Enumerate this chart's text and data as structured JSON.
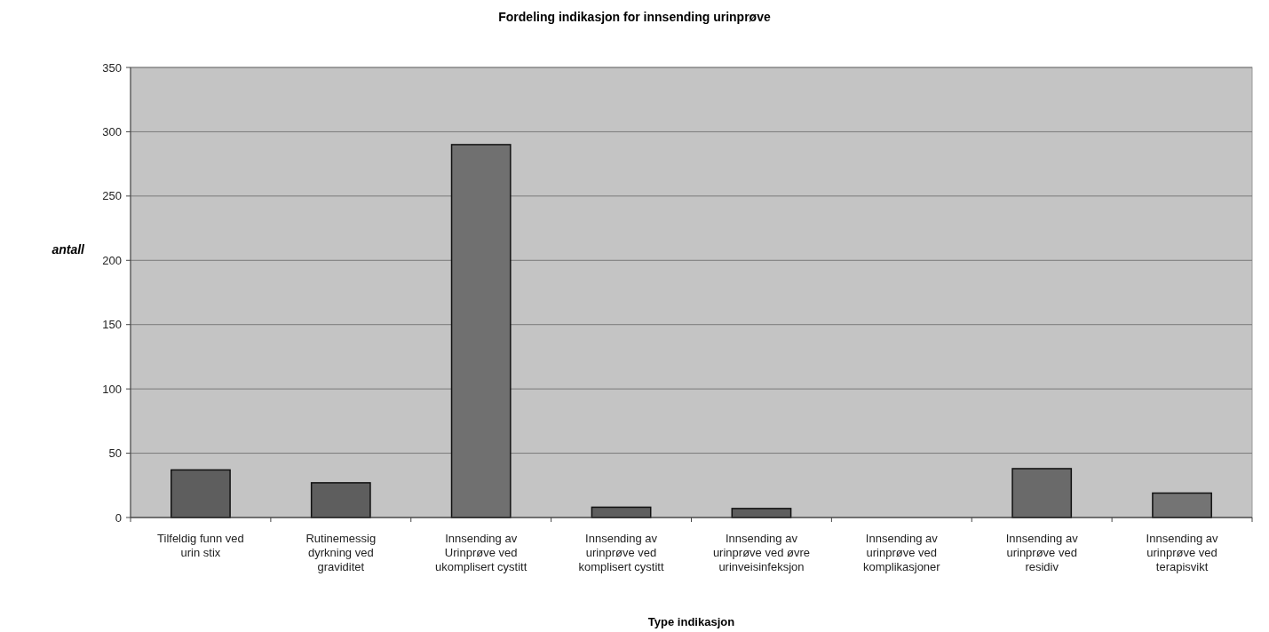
{
  "chart_data": {
    "type": "bar",
    "title": "Fordeling indikasjon for innsending urinprøve",
    "xlabel": "Type indikasjon",
    "ylabel": "antall",
    "categories": [
      "Tilfeldig funn ved urin stix",
      "Rutinemessig dyrkning ved graviditet",
      "Innsending av Urinprøve ved ukomplisert cystitt",
      "Innsending av urinprøve ved komplisert cystitt",
      "Innsending av urinprøve ved øvre urinveisinfeksjon",
      "Innsending av urinprøve ved komplikasjoner",
      "Innsending av urinprøve ved residiv",
      "Innsending av urinprøve ved terapisvikt"
    ],
    "values": [
      37,
      27,
      290,
      8,
      7,
      0,
      38,
      19
    ],
    "colors": [
      "#5e5e5e",
      "#5e5e5e",
      "#707070",
      "#5e5e5e",
      "#5e5e5e",
      "#5e5e5e",
      "#6a6a6a",
      "#747474"
    ],
    "ylim": [
      0,
      350
    ],
    "yticks": [
      0,
      50,
      100,
      150,
      200,
      250,
      300,
      350
    ],
    "grid": "y"
  }
}
